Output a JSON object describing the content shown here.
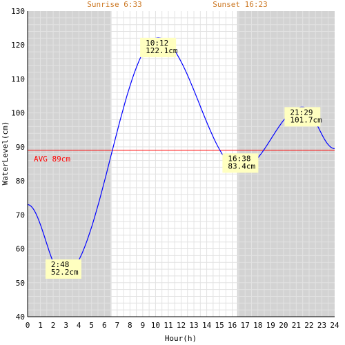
{
  "chart_data": {
    "type": "line",
    "title": "",
    "xlabel": "Hour(h)",
    "ylabel": "WaterLevel(cm)",
    "xlim": [
      0,
      24
    ],
    "ylim": [
      40,
      130
    ],
    "x_ticks": [
      0,
      1,
      2,
      3,
      4,
      5,
      6,
      7,
      8,
      9,
      10,
      11,
      12,
      13,
      14,
      15,
      16,
      17,
      18,
      19,
      20,
      21,
      22,
      23,
      24
    ],
    "y_ticks": [
      40,
      50,
      60,
      70,
      80,
      90,
      100,
      110,
      120,
      130
    ],
    "grid": true,
    "sunrise": {
      "label": "Sunrise 6:33",
      "hour": 6.55
    },
    "sunset": {
      "label": "Sunset 16:23",
      "hour": 16.383
    },
    "average": {
      "label": "AVG 89cm",
      "value": 89
    },
    "extrema": [
      {
        "hour": 2.8,
        "value": 52.2,
        "time_label": "2:48",
        "value_label": "52.2cm"
      },
      {
        "hour": 10.2,
        "value": 122.1,
        "time_label": "10:12",
        "value_label": "122.1cm"
      },
      {
        "hour": 16.633,
        "value": 83.4,
        "time_label": "16:38",
        "value_label": "83.4cm"
      },
      {
        "hour": 21.483,
        "value": 101.7,
        "time_label": "21:29",
        "value_label": "101.7cm"
      }
    ],
    "series": [
      {
        "values_at_endpoints": {
          "start": [
            0,
            73
          ],
          "end": [
            24,
            89.5
          ]
        }
      }
    ],
    "colors": {
      "night_shade": "#d3d3d3",
      "grid": "#e2e2e2",
      "line": "#0000ff",
      "average": "#ff0000",
      "sun_label": "#cc7722",
      "label_bg": "#ffffc0"
    }
  }
}
